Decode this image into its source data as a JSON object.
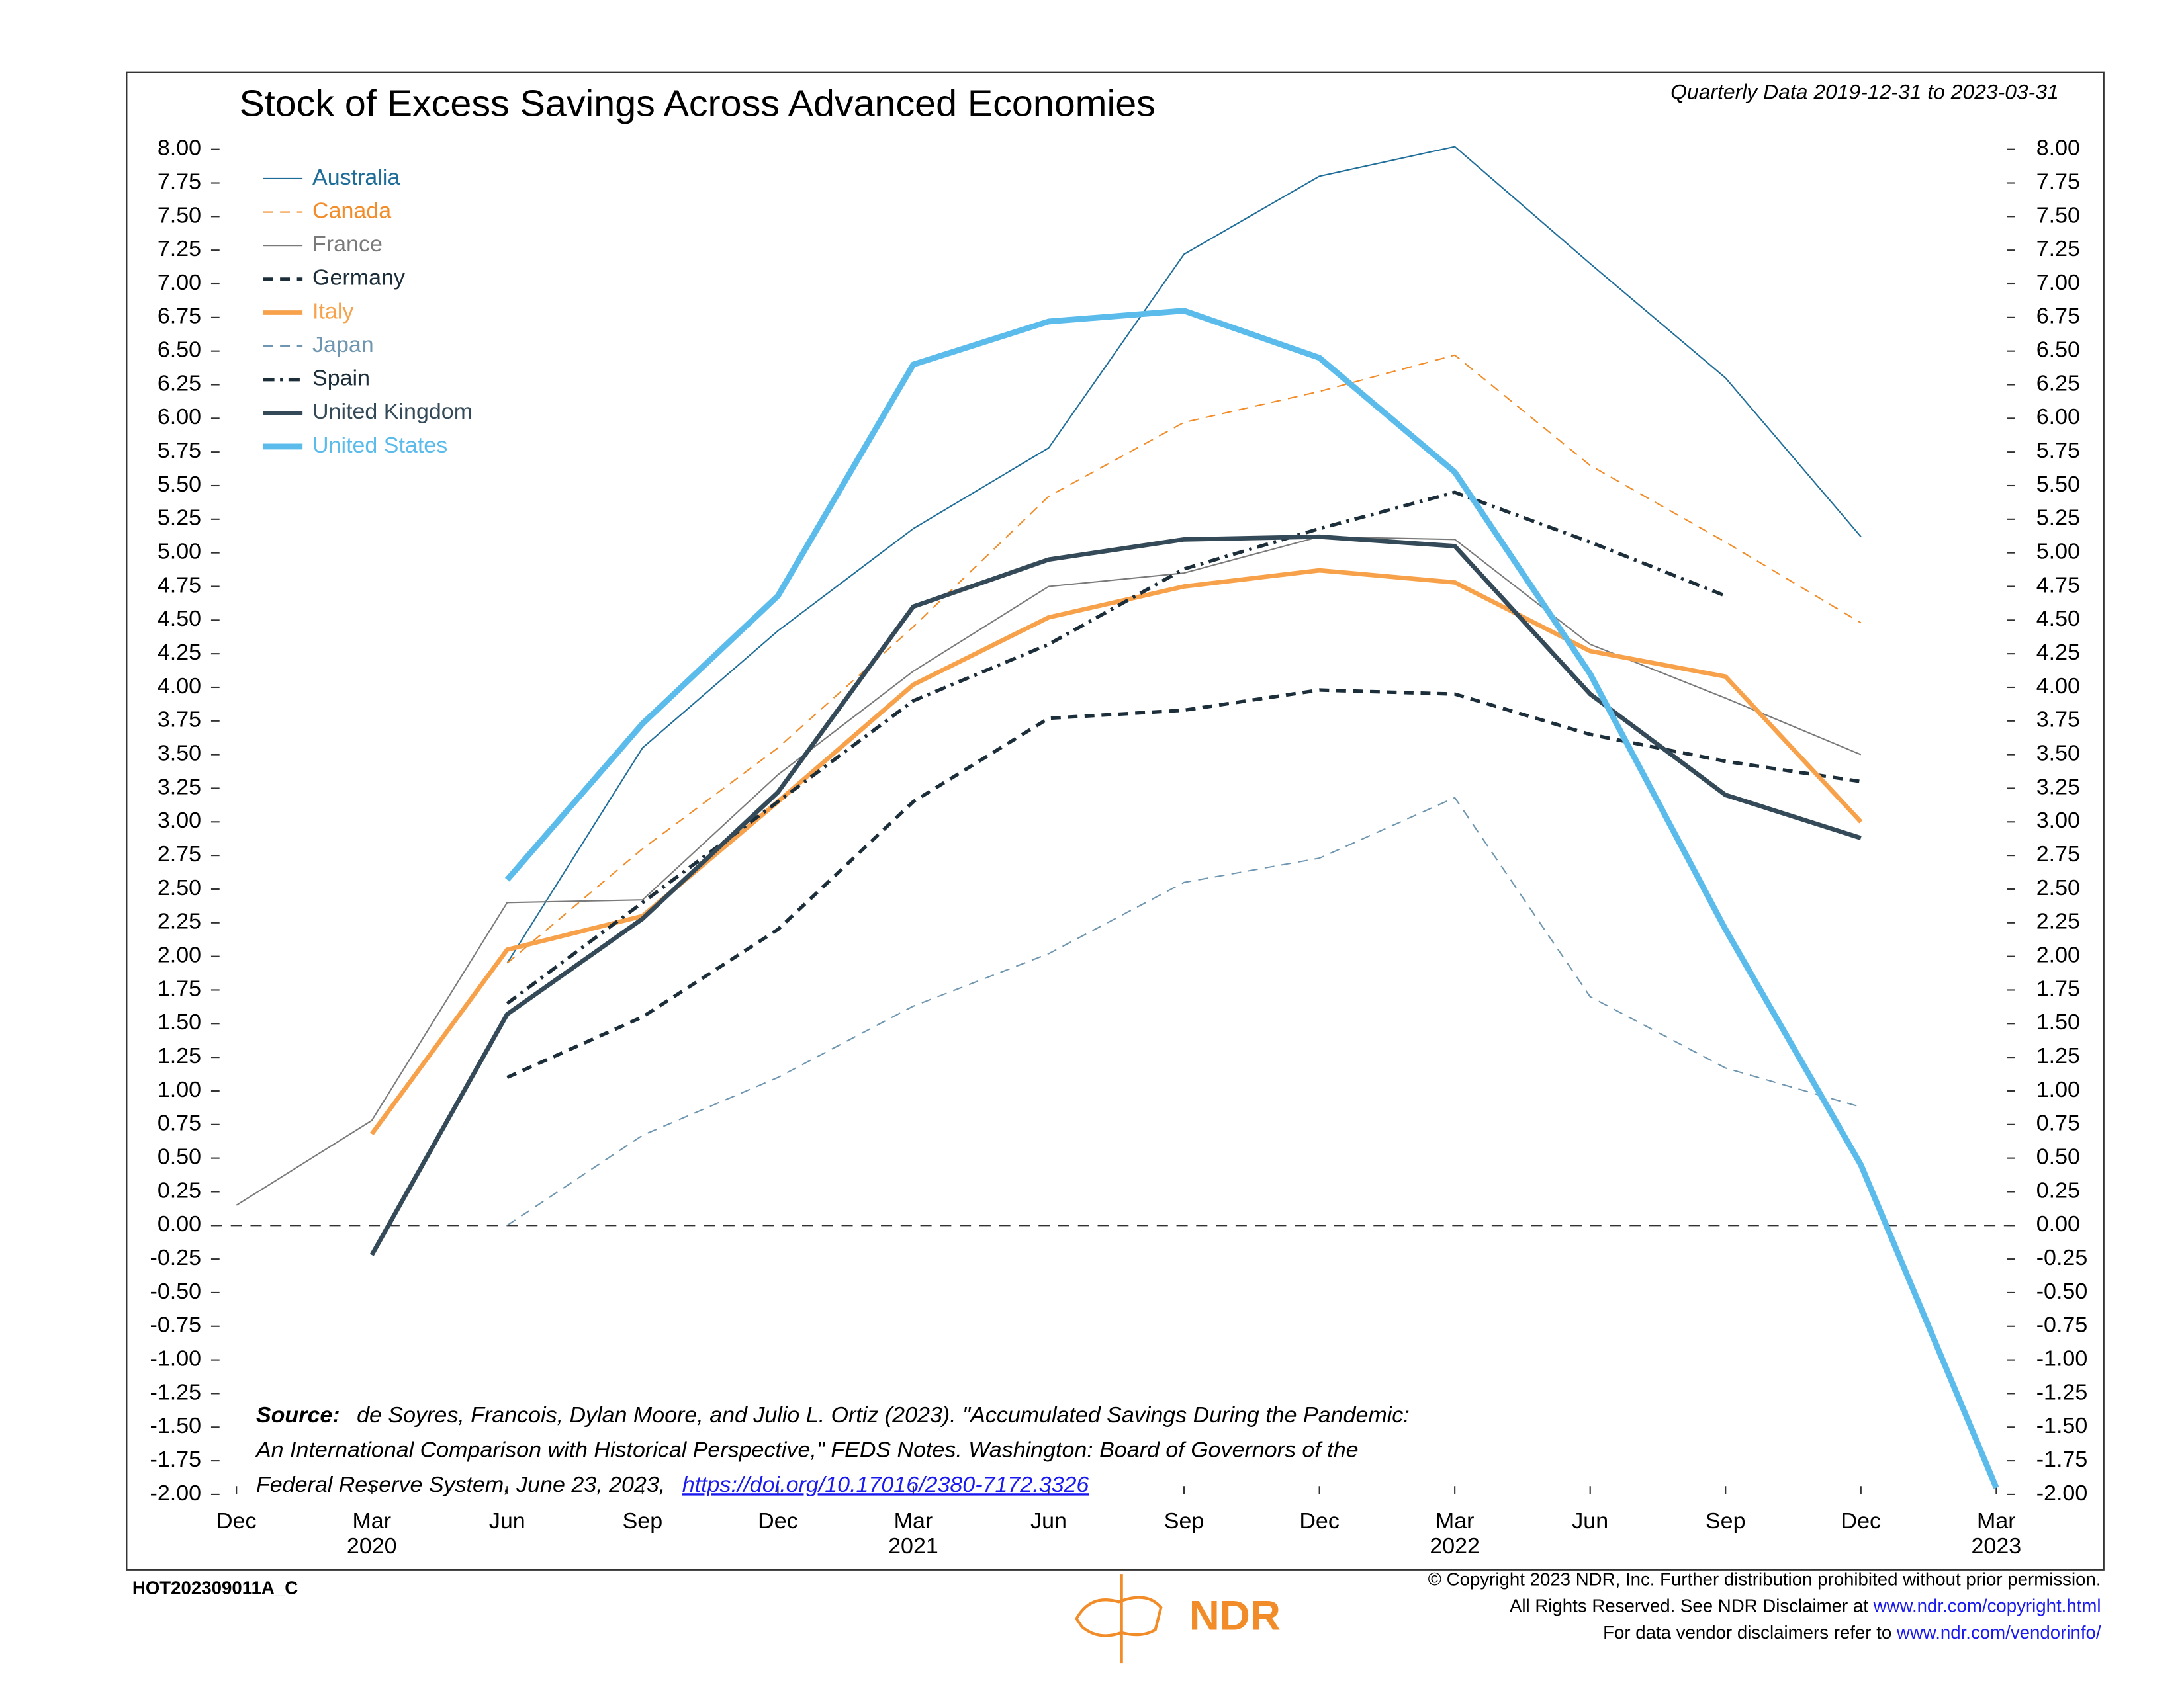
{
  "chart_data": {
    "type": "line",
    "title": "Stock of Excess Savings Across Advanced Economies",
    "subtitle": "Quarterly Data 2019-12-31 to 2023-03-31",
    "categories": [
      "Dec",
      "Mar",
      "Jun",
      "Sep",
      "Dec",
      "Mar",
      "Jun",
      "Sep",
      "Dec",
      "Mar",
      "Jun",
      "Sep",
      "Dec",
      "Mar"
    ],
    "years": [
      null,
      "2020",
      null,
      null,
      null,
      "2021",
      null,
      null,
      null,
      "2022",
      null,
      null,
      null,
      "2023"
    ],
    "ylim": [
      -2,
      8
    ],
    "yticks": [
      {
        "value": 8,
        "label": "8.00"
      },
      {
        "value": 7.75,
        "label": "7.75"
      },
      {
        "value": 7.5,
        "label": "7.50"
      },
      {
        "value": 7.25,
        "label": "7.25"
      },
      {
        "value": 7,
        "label": "7.00"
      },
      {
        "value": 6.75,
        "label": "6.75"
      },
      {
        "value": 6.5,
        "label": "6.50"
      },
      {
        "value": 6.25,
        "label": "6.25"
      },
      {
        "value": 6,
        "label": "6.00"
      },
      {
        "value": 5.75,
        "label": "5.75"
      },
      {
        "value": 5.5,
        "label": "5.50"
      },
      {
        "value": 5.25,
        "label": "5.25"
      },
      {
        "value": 5,
        "label": "5.00"
      },
      {
        "value": 4.75,
        "label": "4.75"
      },
      {
        "value": 4.5,
        "label": "4.50"
      },
      {
        "value": 4.25,
        "label": "4.25"
      },
      {
        "value": 4,
        "label": "4.00"
      },
      {
        "value": 3.75,
        "label": "3.75"
      },
      {
        "value": 3.5,
        "label": "3.50"
      },
      {
        "value": 3.25,
        "label": "3.25"
      },
      {
        "value": 3,
        "label": "3.00"
      },
      {
        "value": 2.75,
        "label": "2.75"
      },
      {
        "value": 2.5,
        "label": "2.50"
      },
      {
        "value": 2.25,
        "label": "2.25"
      },
      {
        "value": 2,
        "label": "2.00"
      },
      {
        "value": 1.75,
        "label": "1.75"
      },
      {
        "value": 1.5,
        "label": "1.50"
      },
      {
        "value": 1.25,
        "label": "1.25"
      },
      {
        "value": 1,
        "label": "1.00"
      },
      {
        "value": 0.75,
        "label": "0.75"
      },
      {
        "value": 0.5,
        "label": "0.50"
      },
      {
        "value": 0.25,
        "label": "0.25"
      },
      {
        "value": 0,
        "label": "0.00"
      },
      {
        "value": -0.25,
        "label": "-0.25"
      },
      {
        "value": -0.5,
        "label": "-0.50"
      },
      {
        "value": -0.75,
        "label": "-0.75"
      },
      {
        "value": -1,
        "label": "-1.00"
      },
      {
        "value": -1.25,
        "label": "-1.25"
      },
      {
        "value": -1.5,
        "label": "-1.50"
      },
      {
        "value": -1.75,
        "label": "-1.75"
      },
      {
        "value": -2,
        "label": "-2.00"
      }
    ],
    "grid": false,
    "reference_line": 0,
    "legend": "upper left",
    "series": [
      {
        "name": "Australia",
        "color": "#1f6e9a",
        "dash": "solid",
        "weight": "thin",
        "values": [
          null,
          null,
          1.95,
          3.55,
          4.42,
          5.18,
          5.78,
          7.22,
          7.8,
          8.02,
          7.15,
          6.3,
          5.12,
          null
        ]
      },
      {
        "name": "Canada",
        "color": "#f28c28",
        "dash": "dashed",
        "weight": "thin",
        "values": [
          null,
          null,
          1.95,
          2.8,
          3.55,
          4.45,
          5.42,
          5.97,
          6.2,
          6.47,
          5.65,
          5.08,
          4.48,
          null
        ]
      },
      {
        "name": "France",
        "color": "#7a7a7a",
        "dash": "solid",
        "weight": "thin",
        "values": [
          0.15,
          0.78,
          2.4,
          2.42,
          3.35,
          4.12,
          4.75,
          4.85,
          5.12,
          5.1,
          4.32,
          3.92,
          3.5,
          null
        ]
      },
      {
        "name": "Germany",
        "color": "#1c2e3a",
        "dash": "dashed",
        "weight": "medium",
        "values": [
          null,
          null,
          1.1,
          1.55,
          2.2,
          3.15,
          3.77,
          3.83,
          3.98,
          3.95,
          3.65,
          3.45,
          3.3,
          null
        ]
      },
      {
        "name": "Italy",
        "color": "#f7a24b",
        "dash": "solid",
        "weight": "thick",
        "values": [
          null,
          0.68,
          2.05,
          2.3,
          3.15,
          4.02,
          4.52,
          4.75,
          4.87,
          4.78,
          4.27,
          4.08,
          3.0,
          null
        ]
      },
      {
        "name": "Japan",
        "color": "#6f96b0",
        "dash": "dashed",
        "weight": "thin",
        "values": [
          null,
          null,
          0.0,
          0.67,
          1.1,
          1.63,
          2.02,
          2.55,
          2.73,
          3.18,
          1.7,
          1.17,
          0.88,
          null
        ]
      },
      {
        "name": "Spain",
        "color": "#1c2e3a",
        "dash": "dashdot",
        "weight": "medium",
        "values": [
          null,
          null,
          1.65,
          2.4,
          3.15,
          3.9,
          4.32,
          4.88,
          5.18,
          5.45,
          5.08,
          4.68,
          null,
          null
        ]
      },
      {
        "name": "United Kingdom",
        "color": "#344a58",
        "dash": "solid",
        "weight": "thick",
        "values": [
          null,
          -0.22,
          1.57,
          2.28,
          3.22,
          4.6,
          4.95,
          5.1,
          5.12,
          5.05,
          3.95,
          3.2,
          2.88,
          null
        ]
      },
      {
        "name": "United States",
        "color": "#5bbcec",
        "dash": "solid",
        "weight": "heavy",
        "values": [
          null,
          null,
          2.57,
          3.73,
          4.68,
          6.4,
          6.72,
          6.8,
          6.45,
          5.6,
          4.1,
          2.2,
          0.45,
          -1.95
        ]
      }
    ],
    "source": {
      "label": "Source:",
      "lines": [
        "de Soyres, Francois, Dylan Moore, and Julio L. Ortiz (2023). \"Accumulated Savings During the Pandemic:",
        "An International Comparison with Historical Perspective,\" FEDS Notes. Washington: Board of Governors of the",
        "Federal Reserve System, June 23, 2023,"
      ],
      "link": "https://doi.org/10.17016/2380-7172.3326"
    },
    "chart_code": "HOT202309011A_C",
    "logo": "NDR",
    "copyright": [
      "© Copyright 2023 NDR, Inc. Further distribution prohibited without prior permission.",
      "All Rights Reserved. See NDR Disclaimer at ",
      "For data vendor disclaimers refer to "
    ],
    "copyright_links": [
      null,
      "www.ndr.com/copyright.html",
      "www.ndr.com/vendorinfo/"
    ]
  }
}
